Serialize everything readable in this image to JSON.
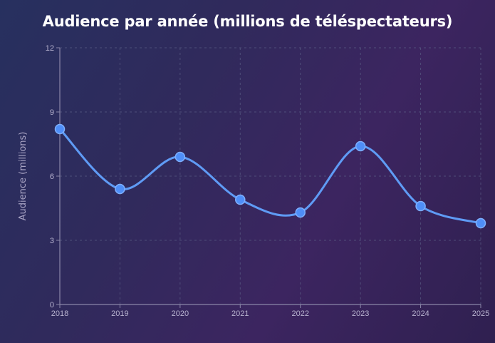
{
  "chart_data": {
    "type": "line",
    "title": "Audience par année (millions de téléspectateurs)",
    "xlabel": "",
    "ylabel": "Audience (millions)",
    "categories": [
      "2018",
      "2019",
      "2020",
      "2021",
      "2022",
      "2023",
      "2024",
      "2025"
    ],
    "series": [
      {
        "values": [
          8.2,
          5.4,
          6.9,
          4.9,
          4.3,
          7.4,
          4.6,
          3.8
        ]
      }
    ],
    "ylim": [
      0,
      12
    ],
    "yticks": [
      "0",
      "3",
      "6",
      "9",
      "12"
    ],
    "grid": true,
    "smooth": true,
    "line_color": "#5f9bf5",
    "point_color": "#4f8ef7",
    "point_stroke": "#7fb0ff"
  }
}
